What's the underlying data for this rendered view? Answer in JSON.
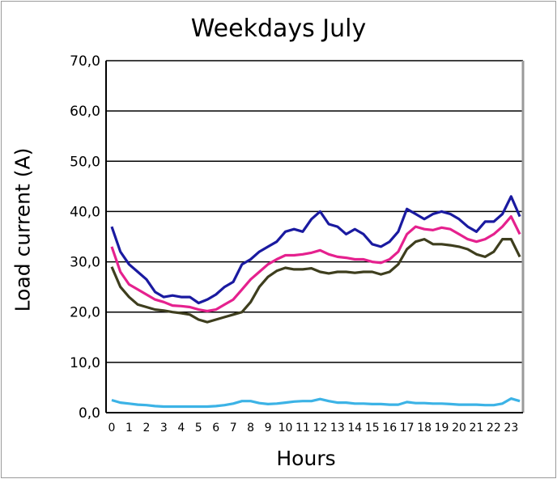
{
  "chart_data": {
    "type": "line",
    "title": "Weekdays July",
    "xlabel": "Hours",
    "ylabel": "Load current  (A)",
    "ylim": [
      0,
      70
    ],
    "yticks": [
      "0,0",
      "10,0",
      "20,0",
      "30,0",
      "40,0",
      "50,0",
      "60,0",
      "70,0"
    ],
    "xticks": [
      "0",
      "1",
      "2",
      "3",
      "4",
      "5",
      "6",
      "7",
      "8",
      "9",
      "10",
      "11",
      "12",
      "13",
      "14",
      "15",
      "16",
      "17",
      "18",
      "19",
      "20",
      "21",
      "22",
      "23"
    ],
    "grid": true,
    "x": [
      0,
      0.5,
      1,
      1.5,
      2,
      2.5,
      3,
      3.5,
      4,
      4.5,
      5,
      5.5,
      6,
      6.5,
      7,
      7.5,
      8,
      8.5,
      9,
      9.5,
      10,
      10.5,
      11,
      11.5,
      12,
      12.5,
      13,
      13.5,
      14,
      14.5,
      15,
      15.5,
      16,
      16.5,
      17,
      17.5,
      18,
      18.5,
      19,
      19.5,
      20,
      20.5,
      21,
      21.5,
      22,
      22.5,
      23,
      23.5
    ],
    "series": [
      {
        "color": "#1a1aa0",
        "values": [
          37,
          32,
          29.5,
          28,
          26.5,
          24,
          23,
          23.3,
          23,
          23,
          21.8,
          22.5,
          23.5,
          25,
          26,
          29.5,
          30.5,
          32,
          33,
          34,
          36,
          36.5,
          36,
          38.5,
          40,
          37.5,
          37,
          35.5,
          36.5,
          35.5,
          33.5,
          33,
          34,
          36,
          40.5,
          39.5,
          38.5,
          39.5,
          40,
          39.5,
          38.5,
          37,
          36,
          38,
          38,
          39.5,
          43,
          39
        ]
      },
      {
        "color": "#e5218e",
        "values": [
          33,
          28,
          25.5,
          24.5,
          23.5,
          22.5,
          22,
          21.3,
          21.2,
          21,
          20.5,
          20.2,
          20.5,
          21.5,
          22.5,
          24.5,
          26.5,
          28,
          29.5,
          30.5,
          31.3,
          31.3,
          31.5,
          31.8,
          32.3,
          31.5,
          31,
          30.8,
          30.5,
          30.5,
          30,
          29.8,
          30.5,
          32,
          35.5,
          37,
          36.5,
          36.3,
          36.8,
          36.5,
          35.5,
          34.5,
          34,
          34.5,
          35.5,
          37,
          39,
          35.5
        ]
      },
      {
        "color": "#3e3e1e",
        "values": [
          29,
          25,
          23,
          21.5,
          21,
          20.5,
          20.3,
          20,
          19.8,
          19.5,
          18.5,
          18,
          18.5,
          19,
          19.5,
          20,
          22,
          25,
          27,
          28.2,
          28.8,
          28.5,
          28.5,
          28.7,
          28,
          27.7,
          28,
          28,
          27.8,
          28,
          28,
          27.5,
          28,
          29.5,
          32.5,
          34,
          34.5,
          33.5,
          33.5,
          33.3,
          33,
          32.5,
          31.5,
          31,
          32,
          34.5,
          34.5,
          31
        ]
      },
      {
        "color": "#3cb3e6",
        "values": [
          2.5,
          2,
          1.8,
          1.6,
          1.5,
          1.3,
          1.2,
          1.2,
          1.2,
          1.2,
          1.2,
          1.2,
          1.3,
          1.5,
          1.8,
          2.3,
          2.3,
          1.9,
          1.7,
          1.8,
          2,
          2.2,
          2.3,
          2.3,
          2.7,
          2.3,
          2,
          2,
          1.8,
          1.8,
          1.7,
          1.7,
          1.6,
          1.6,
          2.1,
          1.9,
          1.9,
          1.8,
          1.8,
          1.7,
          1.6,
          1.6,
          1.6,
          1.5,
          1.5,
          1.8,
          2.8,
          2.3
        ]
      }
    ]
  }
}
